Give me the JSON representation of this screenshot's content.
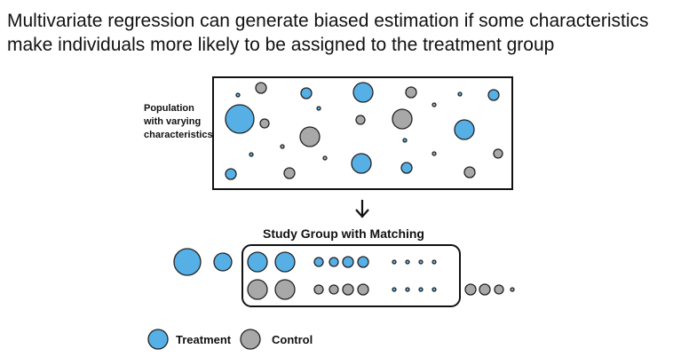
{
  "header": {
    "title_lines": [
      "Multivariate regression can generate biased estimation if some characteristics",
      "make individuals more likely to be assigned to the treatment group"
    ]
  },
  "population_label": {
    "lines": [
      "Population",
      "with varying",
      "characteristics"
    ]
  },
  "study_group_label": "Study Group with Matching",
  "legend": {
    "treatment": "Treatment",
    "control": "Control"
  }
}
